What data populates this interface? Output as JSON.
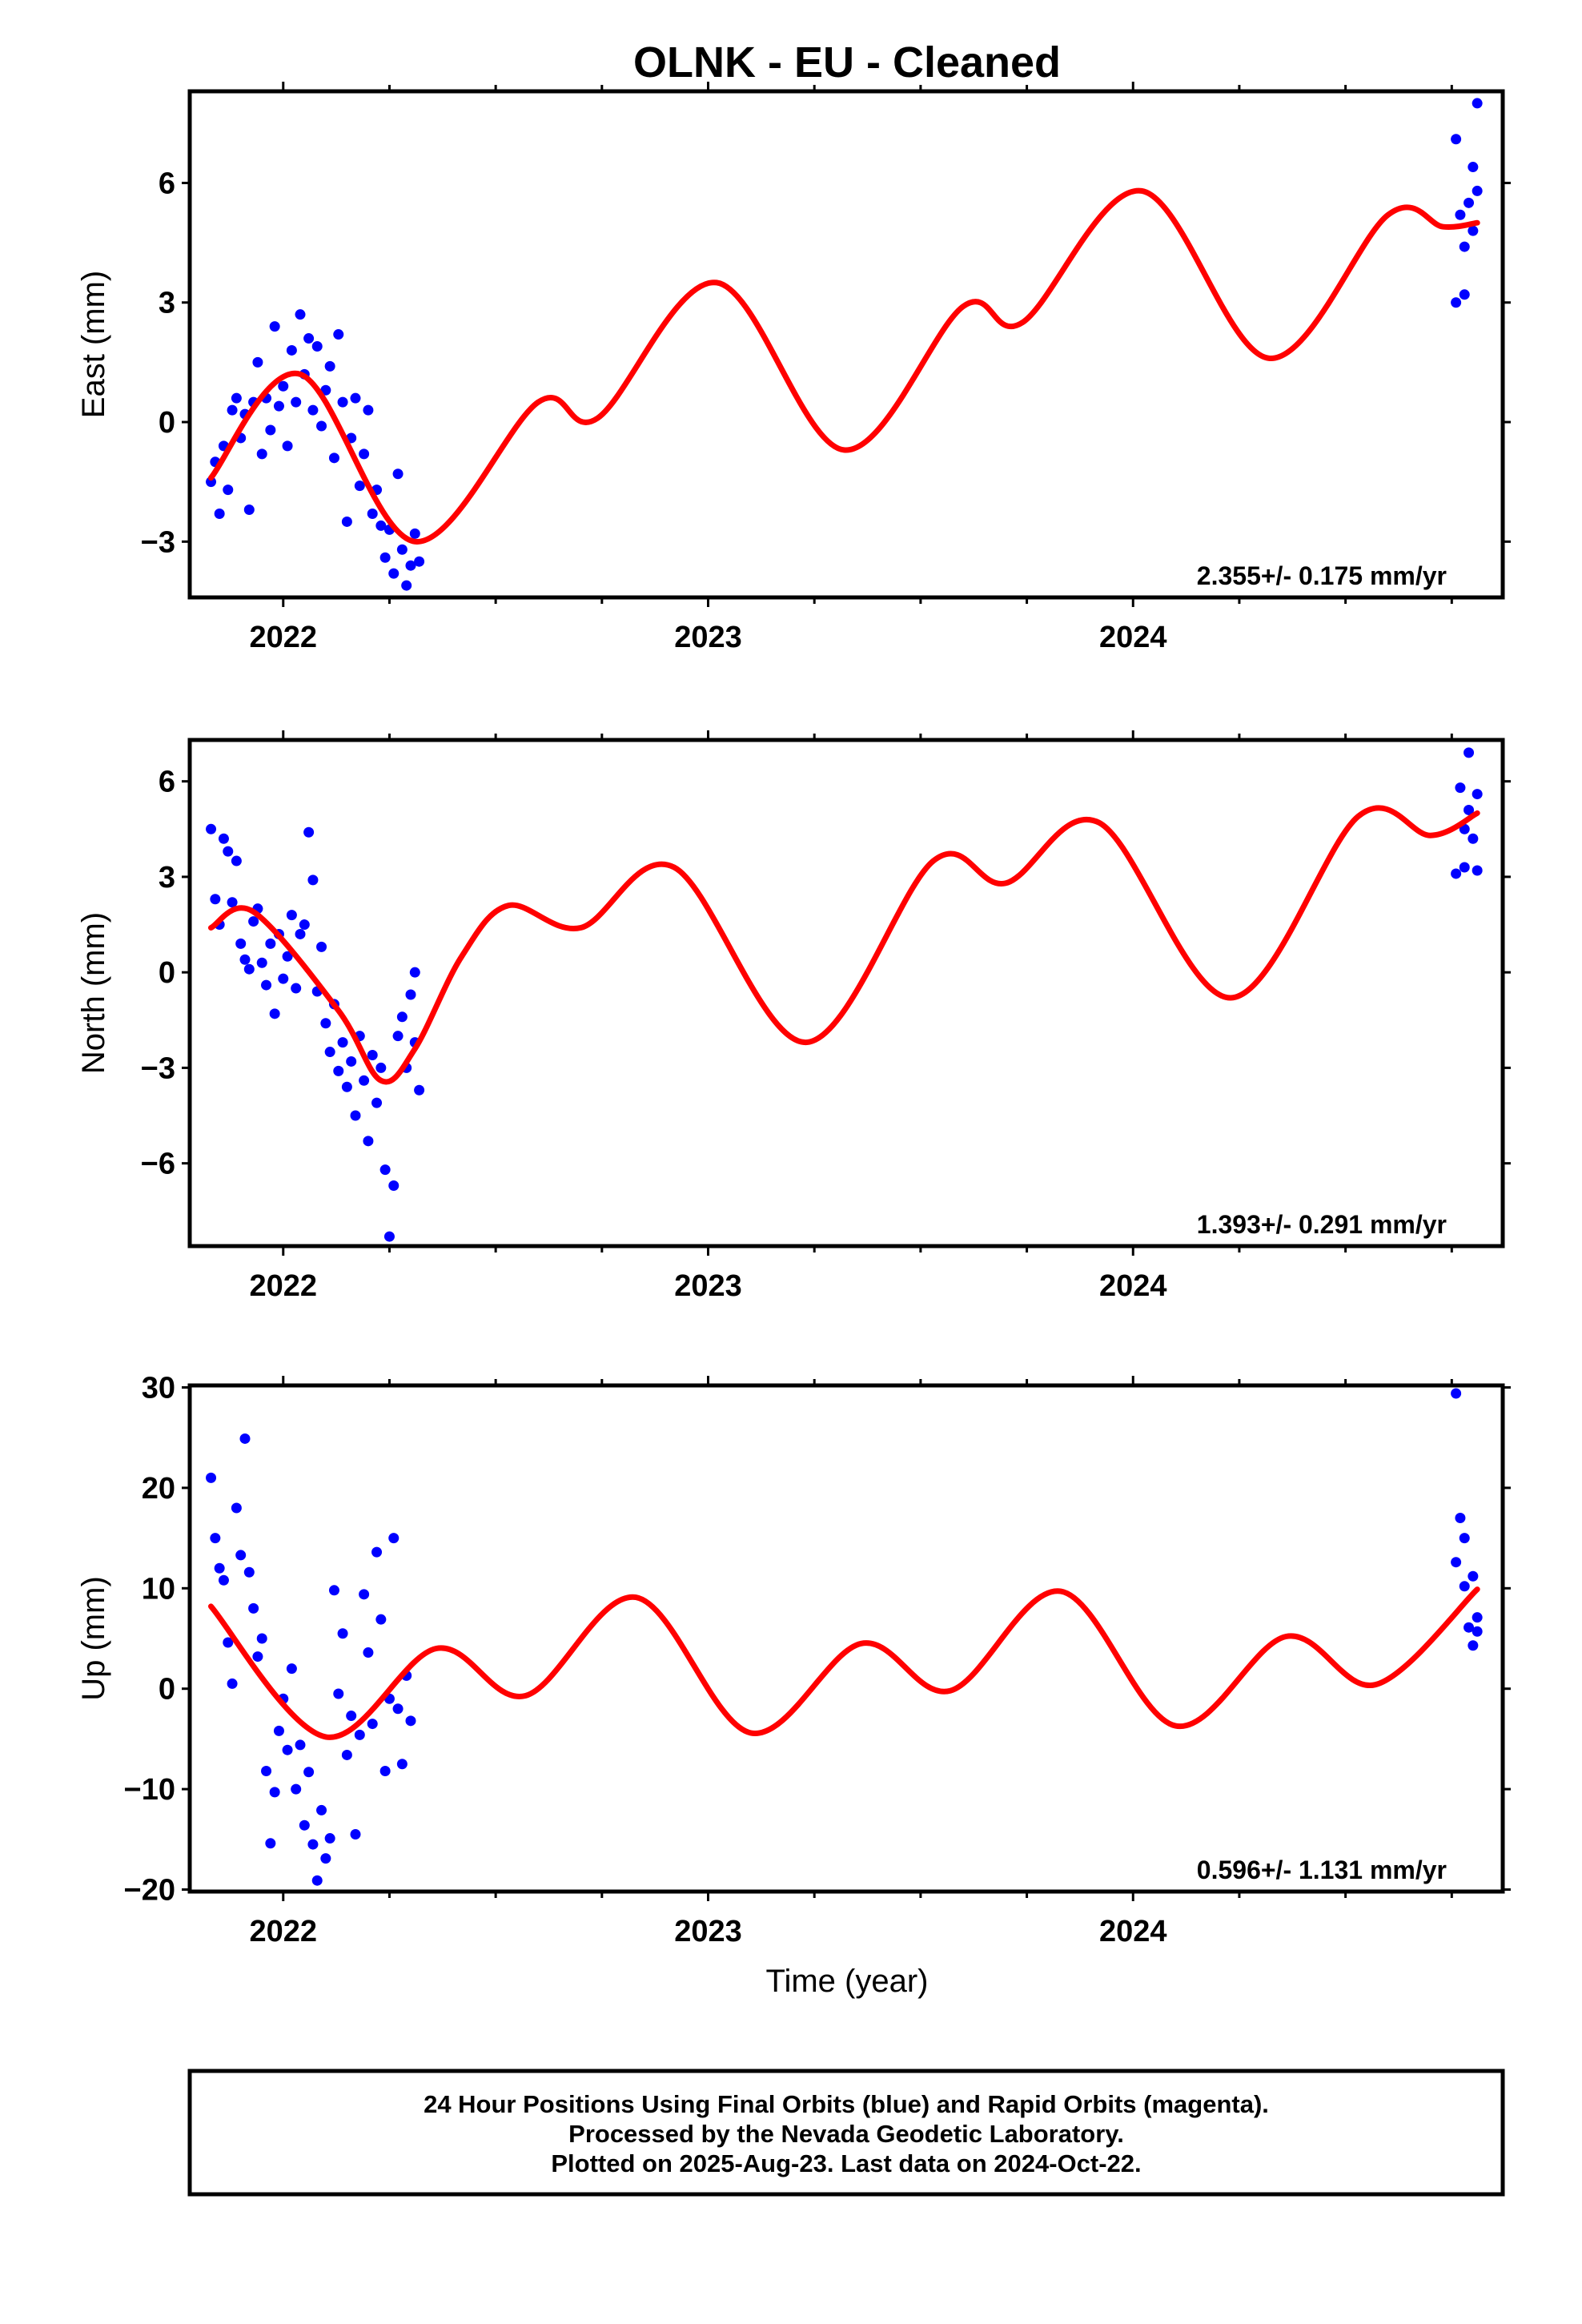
{
  "title": "OLNK  - EU - Cleaned",
  "xlabel": "Time (year)",
  "footer": [
    "24 Hour Positions Using Final Orbits (blue) and Rapid Orbits (magenta).",
    "Processed by the Nevada Geodetic Laboratory.",
    "Plotted on 2025-Aug-23. Last data on 2024-Oct-22."
  ],
  "colors": {
    "data": "#0000ff",
    "model": "#ff0000",
    "frame": "#000000"
  },
  "chart_data": [
    {
      "type": "scatter",
      "ylabel": "East (mm)",
      "rate": "2.355+/- 0.175 mm/yr",
      "xlim": [
        2021.78,
        2024.87
      ],
      "ylim": [
        -4.4,
        8.3
      ],
      "xticks": [
        "2022",
        "2023",
        "2024"
      ],
      "yticks": [
        "-3",
        "0",
        "3",
        "6"
      ],
      "series": [
        {
          "values": [
            [
              2021.83,
              -1.5
            ],
            [
              2021.84,
              -1.0
            ],
            [
              2021.85,
              -2.3
            ],
            [
              2021.86,
              -0.6
            ],
            [
              2021.87,
              -1.7
            ],
            [
              2021.88,
              0.3
            ],
            [
              2021.89,
              0.6
            ],
            [
              2021.9,
              -0.4
            ],
            [
              2021.91,
              0.2
            ],
            [
              2021.92,
              -2.2
            ],
            [
              2021.93,
              0.5
            ],
            [
              2021.94,
              1.5
            ],
            [
              2021.95,
              -0.8
            ],
            [
              2021.96,
              0.6
            ],
            [
              2021.97,
              -0.2
            ],
            [
              2021.98,
              2.4
            ],
            [
              2021.99,
              0.4
            ],
            [
              2022.0,
              0.9
            ],
            [
              2022.01,
              -0.6
            ],
            [
              2022.02,
              1.8
            ],
            [
              2022.03,
              0.5
            ],
            [
              2022.04,
              2.7
            ],
            [
              2022.05,
              1.2
            ],
            [
              2022.06,
              2.1
            ],
            [
              2022.07,
              0.3
            ],
            [
              2022.08,
              1.9
            ],
            [
              2022.09,
              -0.1
            ],
            [
              2022.1,
              0.8
            ],
            [
              2022.11,
              1.4
            ],
            [
              2022.12,
              -0.9
            ],
            [
              2022.13,
              2.2
            ],
            [
              2022.14,
              0.5
            ],
            [
              2022.15,
              -2.5
            ],
            [
              2022.16,
              -0.4
            ],
            [
              2022.17,
              0.6
            ],
            [
              2022.18,
              -1.6
            ],
            [
              2022.19,
              -0.8
            ],
            [
              2022.2,
              0.3
            ],
            [
              2022.21,
              -2.3
            ],
            [
              2022.22,
              -1.7
            ],
            [
              2022.23,
              -2.6
            ],
            [
              2022.24,
              -3.4
            ],
            [
              2022.25,
              -2.7
            ],
            [
              2022.26,
              -3.8
            ],
            [
              2022.27,
              -1.3
            ],
            [
              2022.28,
              -3.2
            ],
            [
              2022.29,
              -4.1
            ],
            [
              2022.3,
              -3.6
            ],
            [
              2022.31,
              -2.8
            ],
            [
              2022.32,
              -3.5
            ],
            [
              2024.76,
              7.1
            ],
            [
              2024.76,
              3.0
            ],
            [
              2024.77,
              5.2
            ],
            [
              2024.78,
              3.2
            ],
            [
              2024.78,
              4.4
            ],
            [
              2024.79,
              5.5
            ],
            [
              2024.8,
              6.4
            ],
            [
              2024.8,
              4.8
            ],
            [
              2024.81,
              8.0
            ],
            [
              2024.81,
              5.8
            ]
          ]
        }
      ],
      "model": [
        [
          2021.83,
          -1.4
        ],
        [
          2022.04,
          1.2
        ],
        [
          2022.31,
          -3.0
        ],
        [
          2022.6,
          0.5
        ],
        [
          2022.74,
          0.1
        ],
        [
          2023.02,
          3.5
        ],
        [
          2023.32,
          -0.7
        ],
        [
          2023.6,
          2.9
        ],
        [
          2023.74,
          2.5
        ],
        [
          2024.02,
          5.8
        ],
        [
          2024.32,
          1.6
        ],
        [
          2024.6,
          5.2
        ],
        [
          2024.73,
          4.9
        ],
        [
          2024.81,
          5.0
        ]
      ]
    },
    {
      "type": "scatter",
      "ylabel": "North (mm)",
      "rate": "1.393+/- 0.291 mm/yr",
      "xlim": [
        2021.78,
        2024.87
      ],
      "ylim": [
        -8.6,
        7.3
      ],
      "xticks": [
        "2022",
        "2023",
        "2024"
      ],
      "yticks": [
        "-6",
        "-3",
        "0",
        "3",
        "6"
      ],
      "series": [
        {
          "values": [
            [
              2021.83,
              4.5
            ],
            [
              2021.84,
              2.3
            ],
            [
              2021.85,
              1.5
            ],
            [
              2021.86,
              4.2
            ],
            [
              2021.87,
              3.8
            ],
            [
              2021.88,
              2.2
            ],
            [
              2021.89,
              3.5
            ],
            [
              2021.9,
              0.9
            ],
            [
              2021.91,
              0.4
            ],
            [
              2021.92,
              0.1
            ],
            [
              2021.93,
              1.6
            ],
            [
              2021.94,
              2.0
            ],
            [
              2021.95,
              0.3
            ],
            [
              2021.96,
              -0.4
            ],
            [
              2021.97,
              0.9
            ],
            [
              2021.98,
              -1.3
            ],
            [
              2021.99,
              1.2
            ],
            [
              2022.0,
              -0.2
            ],
            [
              2022.01,
              0.5
            ],
            [
              2022.02,
              1.8
            ],
            [
              2022.03,
              -0.5
            ],
            [
              2022.04,
              1.2
            ],
            [
              2022.05,
              1.5
            ],
            [
              2022.06,
              4.4
            ],
            [
              2022.07,
              2.9
            ],
            [
              2022.08,
              -0.6
            ],
            [
              2022.09,
              0.8
            ],
            [
              2022.1,
              -1.6
            ],
            [
              2022.11,
              -2.5
            ],
            [
              2022.12,
              -1.0
            ],
            [
              2022.13,
              -3.1
            ],
            [
              2022.14,
              -2.2
            ],
            [
              2022.15,
              -3.6
            ],
            [
              2022.16,
              -2.8
            ],
            [
              2022.17,
              -4.5
            ],
            [
              2022.18,
              -2.0
            ],
            [
              2022.19,
              -3.4
            ],
            [
              2022.2,
              -5.3
            ],
            [
              2022.21,
              -2.6
            ],
            [
              2022.22,
              -4.1
            ],
            [
              2022.23,
              -3.0
            ],
            [
              2022.24,
              -6.2
            ],
            [
              2022.25,
              -8.3
            ],
            [
              2022.26,
              -6.7
            ],
            [
              2022.27,
              -2.0
            ],
            [
              2022.28,
              -1.4
            ],
            [
              2022.29,
              -3.0
            ],
            [
              2022.3,
              -0.7
            ],
            [
              2022.31,
              -2.2
            ],
            [
              2022.32,
              -3.7
            ],
            [
              2022.31,
              0.0
            ],
            [
              2024.76,
              3.1
            ],
            [
              2024.77,
              5.8
            ],
            [
              2024.78,
              4.5
            ],
            [
              2024.78,
              3.3
            ],
            [
              2024.79,
              6.9
            ],
            [
              2024.79,
              5.1
            ],
            [
              2024.8,
              4.2
            ],
            [
              2024.81,
              5.6
            ],
            [
              2024.81,
              3.2
            ]
          ]
        }
      ],
      "model": [
        [
          2021.83,
          1.4
        ],
        [
          2021.93,
          1.9
        ],
        [
          2022.13,
          -1.2
        ],
        [
          2022.23,
          -3.4
        ],
        [
          2022.31,
          -2.4
        ],
        [
          2022.42,
          0.5
        ],
        [
          2022.53,
          2.1
        ],
        [
          2022.7,
          1.4
        ],
        [
          2022.92,
          3.3
        ],
        [
          2023.23,
          -2.2
        ],
        [
          2023.53,
          3.5
        ],
        [
          2023.7,
          2.8
        ],
        [
          2023.92,
          4.7
        ],
        [
          2024.23,
          -0.8
        ],
        [
          2024.53,
          4.9
        ],
        [
          2024.7,
          4.3
        ],
        [
          2024.81,
          5.0
        ]
      ]
    },
    {
      "type": "scatter",
      "ylabel": "Up (mm)",
      "rate": "0.596+/- 1.131 mm/yr",
      "xlim": [
        2021.78,
        2024.87
      ],
      "ylim": [
        -20.2,
        30.2
      ],
      "xticks": [
        "2022",
        "2023",
        "2024"
      ],
      "yticks": [
        "-20",
        "-10",
        "0",
        "10",
        "20",
        "30"
      ],
      "series": [
        {
          "values": [
            [
              2021.83,
              21.0
            ],
            [
              2021.84,
              15.0
            ],
            [
              2021.85,
              12.0
            ],
            [
              2021.86,
              10.8
            ],
            [
              2021.87,
              4.6
            ],
            [
              2021.88,
              0.5
            ],
            [
              2021.89,
              18.0
            ],
            [
              2021.9,
              13.3
            ],
            [
              2021.91,
              24.9
            ],
            [
              2021.92,
              11.6
            ],
            [
              2021.93,
              8.0
            ],
            [
              2021.94,
              3.2
            ],
            [
              2021.95,
              5.0
            ],
            [
              2021.96,
              -8.2
            ],
            [
              2021.97,
              -15.4
            ],
            [
              2021.98,
              -10.3
            ],
            [
              2021.99,
              -4.2
            ],
            [
              2022.0,
              -1.0
            ],
            [
              2022.01,
              -6.1
            ],
            [
              2022.02,
              2.0
            ],
            [
              2022.03,
              -10.0
            ],
            [
              2022.04,
              -5.6
            ],
            [
              2022.05,
              -13.6
            ],
            [
              2022.06,
              -8.3
            ],
            [
              2022.07,
              -15.5
            ],
            [
              2022.08,
              -19.1
            ],
            [
              2022.09,
              -12.1
            ],
            [
              2022.1,
              -16.9
            ],
            [
              2022.11,
              -14.9
            ],
            [
              2022.12,
              9.8
            ],
            [
              2022.13,
              -0.5
            ],
            [
              2022.14,
              5.5
            ],
            [
              2022.15,
              -6.6
            ],
            [
              2022.16,
              -2.7
            ],
            [
              2022.17,
              -14.5
            ],
            [
              2022.18,
              -4.6
            ],
            [
              2022.19,
              9.4
            ],
            [
              2022.2,
              3.6
            ],
            [
              2022.21,
              -3.5
            ],
            [
              2022.22,
              13.6
            ],
            [
              2022.23,
              6.9
            ],
            [
              2022.24,
              -8.2
            ],
            [
              2022.25,
              -1.0
            ],
            [
              2022.26,
              15.0
            ],
            [
              2022.27,
              -2.0
            ],
            [
              2022.28,
              -7.5
            ],
            [
              2022.29,
              1.3
            ],
            [
              2022.3,
              -3.2
            ],
            [
              2024.76,
              29.4
            ],
            [
              2024.76,
              12.6
            ],
            [
              2024.77,
              17.0
            ],
            [
              2024.78,
              10.2
            ],
            [
              2024.78,
              15.0
            ],
            [
              2024.79,
              6.1
            ],
            [
              2024.8,
              11.2
            ],
            [
              2024.8,
              4.3
            ],
            [
              2024.81,
              7.1
            ],
            [
              2024.81,
              5.7
            ]
          ]
        }
      ],
      "model": [
        [
          2021.83,
          8.2
        ],
        [
          2022.1,
          -4.8
        ],
        [
          2022.36,
          4.0
        ],
        [
          2022.57,
          -0.7
        ],
        [
          2022.83,
          9.1
        ],
        [
          2023.1,
          -4.4
        ],
        [
          2023.36,
          4.5
        ],
        [
          2023.57,
          -0.2
        ],
        [
          2023.83,
          9.7
        ],
        [
          2024.1,
          -3.7
        ],
        [
          2024.36,
          5.2
        ],
        [
          2024.57,
          0.4
        ],
        [
          2024.81,
          9.9
        ]
      ]
    }
  ]
}
